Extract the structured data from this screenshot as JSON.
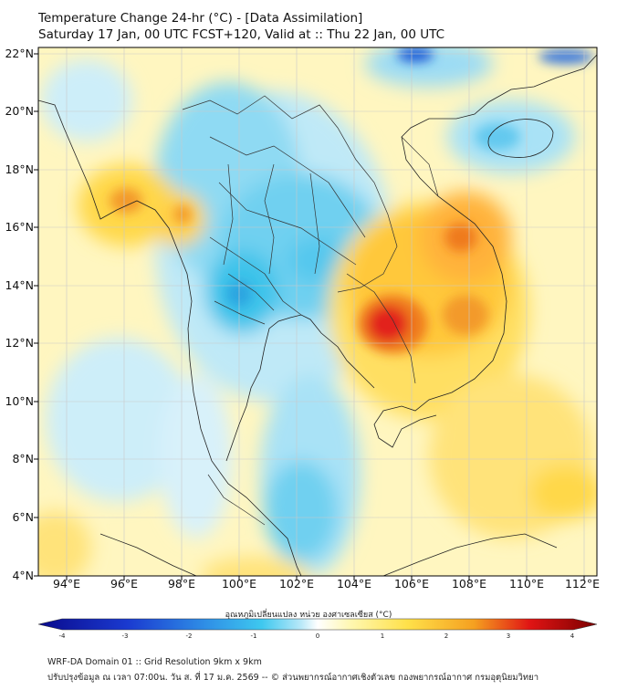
{
  "title_line1": "Temperature Change 24-hr (°C) - [Data Assimilation]",
  "title_line2": "Saturday 17 Jan, 00 UTC FCST+120, Valid at :: Thu 22 Jan, 00 UTC",
  "lat_labels": [
    "22°N",
    "20°N",
    "18°N",
    "16°N",
    "14°N",
    "12°N",
    "10°N",
    "8°N",
    "6°N",
    "4°N"
  ],
  "lon_labels": [
    "94°E",
    "96°E",
    "98°E",
    "100°E",
    "102°E",
    "104°E",
    "106°E",
    "108°E",
    "110°E",
    "112°E"
  ],
  "colorbar": {
    "label": "อุณหภูมิเปลี่ยนแปลง หน่วย องศาเซลเซียส (°C)",
    "ticks": [
      "-4",
      "-3",
      "-2",
      "-1",
      "0",
      "1",
      "2",
      "3",
      "4"
    ],
    "range": [
      -4,
      4
    ]
  },
  "footer_line1": "WRF-DA Domain 01 :: Grid Resolution 9km x 9km",
  "footer_line2": "ปรับปรุงข้อมูล ณ เวลา 07:00น. วัน ส. ที่ 17 ม.ค. 2569 -- © ส่วนพยากรณ์อากาศเชิงตัวเลข กองพยากรณ์อากาศ กรมอุตุนิยมวิทยา",
  "palette": {
    "cold_dark": "#0a0a8c",
    "cold": "#1e5ad6",
    "cool": "#3ec8ef",
    "light_cool": "#b8e8f8",
    "neutral": "#ffffff",
    "light_warm": "#fff7b0",
    "warm": "#ffd23c",
    "hot": "#f07a1e",
    "very_hot": "#e01414",
    "extreme": "#7a0000"
  }
}
